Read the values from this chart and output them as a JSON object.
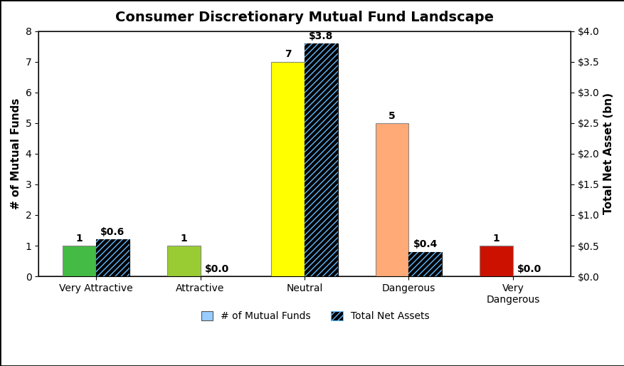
{
  "title": "Consumer Discretionary Mutual Fund Landscape",
  "categories": [
    "Very Attractive",
    "Attractive",
    "Neutral",
    "Dangerous",
    "Very\nDangerous"
  ],
  "num_funds": [
    1,
    1,
    7,
    5,
    1
  ],
  "total_assets": [
    0.6,
    0.0,
    3.8,
    0.4,
    0.0
  ],
  "bar_colors": [
    "#44bb44",
    "#99cc33",
    "#ffff00",
    "#ffaa77",
    "#cc1100"
  ],
  "hatch_bg_color": "#000000",
  "hatch_stripe_color": "#66bbff",
  "fund_labels": [
    "1",
    "1",
    "7",
    "5",
    "1"
  ],
  "asset_labels": [
    "$0.6",
    "$0.0",
    "$3.8",
    "$0.4",
    "$0.0"
  ],
  "ylim_left": [
    0,
    8
  ],
  "ylim_right": [
    0,
    4.0
  ],
  "ylabel_left": "# of Mutual Funds",
  "ylabel_right": "Total Net Asset (bn)",
  "background_color": "#ffffff",
  "title_fontsize": 14,
  "label_fontsize": 10,
  "axis_fontsize": 11,
  "tick_fontsize": 10,
  "legend_label1": "# of Mutual Funds",
  "legend_label2": "Total Net Assets"
}
